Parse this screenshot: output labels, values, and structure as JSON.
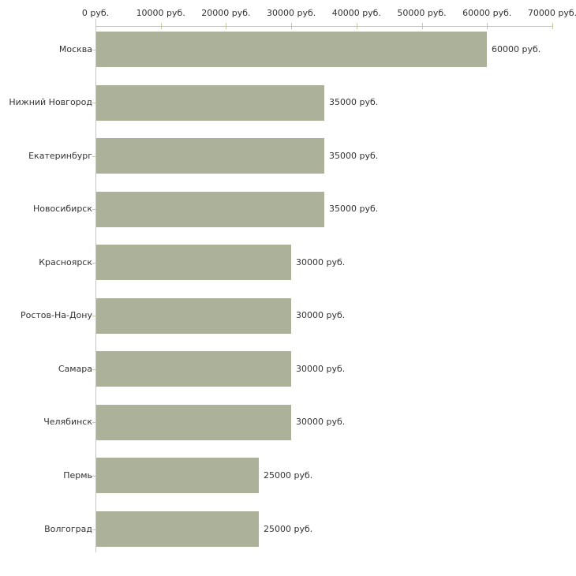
{
  "chart_data": {
    "type": "bar",
    "orientation": "horizontal",
    "title": "",
    "xlabel": "",
    "ylabel": "",
    "unit": "руб.",
    "xlim": [
      0,
      70000
    ],
    "grid": false,
    "legend": false,
    "categories": [
      "Москва",
      "Нижний Новгород",
      "Екатеринбург",
      "Новосибирск",
      "Красноярск",
      "Ростов-На-Дону",
      "Самара",
      "Челябинск",
      "Пермь",
      "Волгоград"
    ],
    "values": [
      60000,
      35000,
      35000,
      35000,
      30000,
      30000,
      30000,
      30000,
      25000,
      25000
    ],
    "value_labels": [
      "60000 руб.",
      "35000 руб.",
      "35000 руб.",
      "35000 руб.",
      "30000 руб.",
      "30000 руб.",
      "30000 руб.",
      "30000 руб.",
      "25000 руб.",
      "25000 руб."
    ],
    "x_tick_labels": [
      "0 руб.",
      "10000 руб.",
      "20000 руб.",
      "30000 руб.",
      "40000 руб.",
      "50000 руб.",
      "60000 руб.",
      "70000 руб."
    ],
    "colors": {
      "bar": "#acb29a",
      "axis": "#c6c6c6",
      "tick": "#c8c8a2",
      "text": "#333333",
      "background": "#ffffff"
    }
  }
}
